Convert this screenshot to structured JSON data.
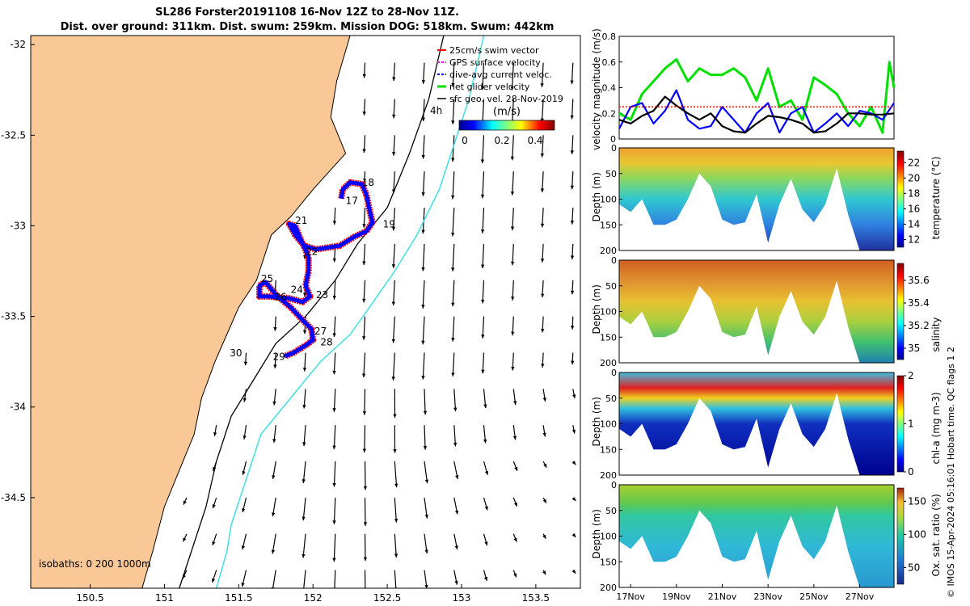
{
  "title": {
    "line1": "SL286 Forster20191108 16-Nov 12Z to 28-Nov 11Z.",
    "line2": "Dist. over ground: 311km. Dist. swum: 259km. Mission DOG: 518km. Swum: 442km"
  },
  "colors": {
    "land": "#f9c896",
    "current_contour": "#40e0e0",
    "swim_vector": "#ff0000",
    "gps_velocity": "#ff00ff",
    "dive_avg": "#0000ff",
    "net_velocity": "#00e000",
    "sfc_geo": "#000000"
  },
  "chart_data": [
    {
      "id": "map",
      "type": "scatter",
      "title": "glider track map",
      "x_ticks": [
        "150.5",
        "151",
        "151.5",
        "152",
        "152.5",
        "153",
        "153.5"
      ],
      "y_ticks": [
        "-32",
        "-32.5",
        "-33",
        "-33.5",
        "-34",
        "-34.5"
      ],
      "xlim": [
        150.1,
        153.8
      ],
      "ylim": [
        -35.0,
        -31.95
      ],
      "legend": {
        "position": "top-right",
        "entries": [
          "25cm/s swim vector",
          "GPS surface velocity",
          "dive-avg current veloc.",
          "net glider velocity",
          "sfc geo. vel. 28-Nov-2019"
        ]
      },
      "colorbar": {
        "label": "(m/s)",
        "ticks": [
          "0",
          "0.2",
          "0.4"
        ],
        "range": [
          0,
          0.5
        ]
      },
      "annotations": {
        "time_marker": "4h",
        "isobaths": "isobaths: 0   200  1000m"
      },
      "day_labels": [
        {
          "text": "18",
          "lon": 152.33,
          "lat": -32.78
        },
        {
          "text": "17",
          "lon": 152.22,
          "lat": -32.88
        },
        {
          "text": "19",
          "lon": 152.47,
          "lat": -33.01
        },
        {
          "text": "21",
          "lon": 151.88,
          "lat": -32.99
        },
        {
          "text": "22",
          "lon": 151.95,
          "lat": -33.16
        },
        {
          "text": "25",
          "lon": 151.65,
          "lat": -33.31
        },
        {
          "text": "24",
          "lon": 151.85,
          "lat": -33.37
        },
        {
          "text": "26",
          "lon": 151.74,
          "lat": -33.41
        },
        {
          "text": "23",
          "lon": 152.02,
          "lat": -33.4
        },
        {
          "text": "27",
          "lon": 152.01,
          "lat": -33.6
        },
        {
          "text": "28",
          "lon": 152.05,
          "lat": -33.66
        },
        {
          "text": "29",
          "lon": 151.73,
          "lat": -33.74
        },
        {
          "text": "30",
          "lon": 151.44,
          "lat": -33.72
        }
      ],
      "track_points": [
        [
          152.19,
          -32.85
        ],
        [
          152.2,
          -32.8
        ],
        [
          152.25,
          -32.76
        ],
        [
          152.33,
          -32.77
        ],
        [
          152.36,
          -32.83
        ],
        [
          152.38,
          -32.91
        ],
        [
          152.4,
          -32.98
        ],
        [
          152.36,
          -33.03
        ],
        [
          152.28,
          -33.06
        ],
        [
          152.18,
          -33.11
        ],
        [
          152.1,
          -33.12
        ],
        [
          152.02,
          -33.13
        ],
        [
          151.94,
          -33.11
        ],
        [
          151.88,
          -33.05
        ],
        [
          151.84,
          -32.99
        ],
        [
          151.88,
          -33.0
        ],
        [
          151.92,
          -33.08
        ],
        [
          151.97,
          -33.17
        ],
        [
          151.97,
          -33.25
        ],
        [
          151.95,
          -33.33
        ],
        [
          151.98,
          -33.39
        ],
        [
          151.93,
          -33.42
        ],
        [
          151.84,
          -33.4
        ],
        [
          151.7,
          -33.39
        ],
        [
          151.64,
          -33.39
        ],
        [
          151.64,
          -33.33
        ],
        [
          151.68,
          -33.31
        ],
        [
          151.75,
          -33.38
        ],
        [
          151.85,
          -33.45
        ],
        [
          151.93,
          -33.52
        ],
        [
          151.99,
          -33.57
        ],
        [
          152.0,
          -33.63
        ],
        [
          151.95,
          -33.66
        ],
        [
          151.87,
          -33.7
        ],
        [
          151.81,
          -33.72
        ]
      ],
      "shelf_line_points": [
        [
          152.88,
          -31.95
        ],
        [
          152.78,
          -32.3
        ],
        [
          152.65,
          -32.6
        ],
        [
          152.5,
          -32.9
        ],
        [
          152.3,
          -33.1
        ],
        [
          152.15,
          -33.3
        ],
        [
          151.95,
          -33.5
        ],
        [
          151.75,
          -33.65
        ],
        [
          151.6,
          -33.85
        ],
        [
          151.45,
          -34.05
        ],
        [
          151.35,
          -34.3
        ],
        [
          151.28,
          -34.55
        ],
        [
          151.1,
          -35.0
        ]
      ],
      "current_contour_points": [
        [
          153.15,
          -31.95
        ],
        [
          153.05,
          -32.3
        ],
        [
          152.95,
          -32.55
        ],
        [
          152.85,
          -32.8
        ],
        [
          152.7,
          -33.05
        ],
        [
          152.55,
          -33.25
        ],
        [
          152.38,
          -33.45
        ],
        [
          152.25,
          -33.6
        ],
        [
          152.05,
          -33.75
        ],
        [
          151.85,
          -33.95
        ],
        [
          151.65,
          -34.15
        ],
        [
          151.55,
          -34.4
        ],
        [
          151.45,
          -34.65
        ],
        [
          151.42,
          -34.8
        ],
        [
          151.35,
          -35.0
        ]
      ]
    },
    {
      "id": "velocity",
      "type": "line",
      "ylabel": "velocity magnitude (m/s)",
      "ylim": [
        0,
        0.8
      ],
      "y_ticks": [
        "0",
        "0.2",
        "0.4",
        "0.6",
        "0.8"
      ],
      "xlim": [
        16.5,
        28.5
      ],
      "series": [
        {
          "name": "net glider velocity",
          "color": "#00e000",
          "x": [
            16.5,
            17,
            17.5,
            18,
            18.5,
            19,
            19.5,
            20,
            20.5,
            21,
            21.5,
            22,
            22.5,
            23,
            23.5,
            24,
            24.5,
            25,
            25.5,
            26,
            26.5,
            27,
            27.5,
            28,
            28.3,
            28.5
          ],
          "values": [
            0.2,
            0.15,
            0.35,
            0.45,
            0.55,
            0.62,
            0.45,
            0.55,
            0.5,
            0.5,
            0.55,
            0.48,
            0.3,
            0.55,
            0.25,
            0.3,
            0.15,
            0.48,
            0.42,
            0.35,
            0.2,
            0.1,
            0.25,
            0.05,
            0.6,
            0.4
          ]
        },
        {
          "name": "dive-avg current veloc.",
          "color": "#0000ff",
          "x": [
            16.5,
            17,
            17.5,
            18,
            18.5,
            19,
            19.5,
            20,
            20.5,
            21,
            21.5,
            22,
            22.5,
            23,
            23.5,
            24,
            24.5,
            25,
            25.5,
            26,
            26.5,
            27,
            27.5,
            28,
            28.5
          ],
          "values": [
            0.08,
            0.25,
            0.28,
            0.12,
            0.22,
            0.38,
            0.15,
            0.08,
            0.1,
            0.25,
            0.15,
            0.05,
            0.2,
            0.28,
            0.05,
            0.2,
            0.25,
            0.05,
            0.12,
            0.2,
            0.1,
            0.22,
            0.2,
            0.15,
            0.28
          ]
        },
        {
          "name": "sfc geo. vel.",
          "color": "#000000",
          "x": [
            16.5,
            17,
            17.5,
            18,
            18.5,
            19,
            19.5,
            20,
            20.5,
            21,
            21.5,
            22,
            22.5,
            23,
            23.5,
            24,
            24.5,
            25,
            25.5,
            26,
            26.5,
            27,
            27.5,
            28,
            28.5
          ],
          "values": [
            0.15,
            0.12,
            0.18,
            0.22,
            0.33,
            0.26,
            0.2,
            0.15,
            0.2,
            0.1,
            0.06,
            0.05,
            0.12,
            0.18,
            0.17,
            0.15,
            0.12,
            0.05,
            0.06,
            0.12,
            0.2,
            0.2,
            0.19,
            0.19,
            0.2
          ]
        },
        {
          "name": "swim speed",
          "color": "#ff0000",
          "x": [
            16.5,
            28.5
          ],
          "values": [
            0.25,
            0.25
          ]
        }
      ]
    },
    {
      "id": "temperature",
      "type": "heatmap",
      "ylabel": "Depth (m)",
      "ylim": [
        200,
        0
      ],
      "y_ticks": [
        "0",
        "50",
        "100",
        "150",
        "200"
      ],
      "colorbar_label": "temperature (°C)",
      "colorbar_ticks": [
        "22",
        "20",
        "18",
        "16",
        "14",
        "12"
      ],
      "crange": [
        11,
        23.5
      ]
    },
    {
      "id": "salinity",
      "type": "heatmap",
      "ylabel": "Depth (m)",
      "ylim": [
        200,
        0
      ],
      "y_ticks": [
        "0",
        "50",
        "100",
        "150",
        "200"
      ],
      "colorbar_label": "salinity",
      "colorbar_ticks": [
        "35.6",
        "35.4",
        "35.2",
        "35"
      ],
      "crange": [
        34.9,
        35.75
      ]
    },
    {
      "id": "chla",
      "type": "heatmap",
      "ylabel": "Depth (m)",
      "ylim": [
        200,
        0
      ],
      "y_ticks": [
        "0",
        "50",
        "100",
        "150",
        "200"
      ],
      "colorbar_label": "chl-a (mg m-3)",
      "colorbar_ticks": [
        "2",
        "1",
        "0"
      ],
      "crange": [
        0,
        2
      ]
    },
    {
      "id": "oxygen",
      "type": "heatmap",
      "ylabel": "Depth (m)",
      "ylim": [
        200,
        0
      ],
      "y_ticks": [
        "0",
        "50",
        "100",
        "150",
        "200"
      ],
      "colorbar_label": "Ox. sat. ratio (%)",
      "colorbar_ticks": [
        "150",
        "100",
        "50"
      ],
      "crange": [
        25,
        170
      ],
      "x_ticks": [
        "17Nov",
        "19Nov",
        "21Nov",
        "23Nov",
        "25Nov",
        "27Nov"
      ]
    }
  ],
  "time_axis": {
    "xlim": [
      16.5,
      28.5
    ],
    "tick_days": [
      17,
      19,
      21,
      23,
      25,
      27
    ],
    "dive_depth_profile": {
      "day": [
        16.5,
        17,
        17.5,
        18,
        18.5,
        19,
        19.5,
        20,
        20.5,
        21,
        21.5,
        22,
        22.5,
        23,
        23.5,
        24,
        24.5,
        25,
        25.5,
        26,
        26.5,
        27,
        27.5,
        28,
        28.5
      ],
      "max_depth_m": [
        110,
        125,
        100,
        150,
        150,
        140,
        100,
        50,
        75,
        140,
        150,
        145,
        90,
        185,
        110,
        60,
        120,
        145,
        110,
        40,
        130,
        200,
        200,
        200,
        200
      ]
    }
  },
  "side_caption": "© IMOS 15-Apr-2024 05:16:01 Hobart time. QC flags 1  2"
}
